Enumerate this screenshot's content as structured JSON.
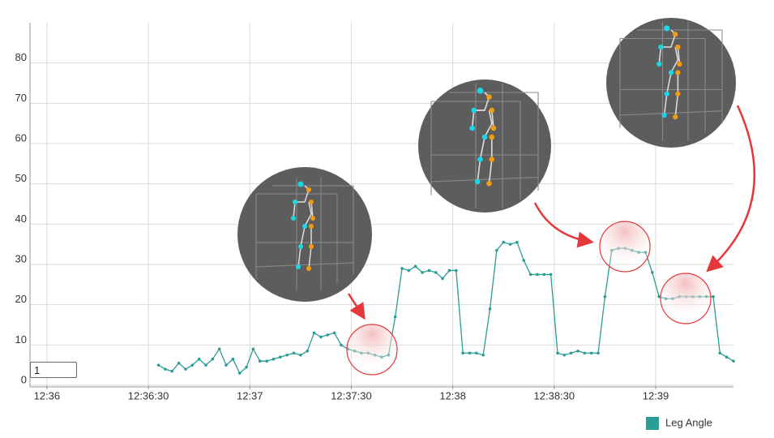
{
  "range_input": "1",
  "chart_data": {
    "type": "line",
    "x": [
      "12:36:33",
      "12:36:35",
      "12:36:37",
      "12:36:39",
      "12:36:41",
      "12:36:43",
      "12:36:45",
      "12:36:47",
      "12:36:49",
      "12:36:51",
      "12:36:53",
      "12:36:55",
      "12:36:57",
      "12:36:59",
      "12:37:01",
      "12:37:03",
      "12:37:05",
      "12:37:07",
      "12:37:09",
      "12:37:11",
      "12:37:13",
      "12:37:15",
      "12:37:17",
      "12:37:19",
      "12:37:21",
      "12:37:23",
      "12:37:25",
      "12:37:27",
      "12:37:29",
      "12:37:31",
      "12:37:33",
      "12:37:35",
      "12:37:37",
      "12:37:39",
      "12:37:41",
      "12:37:43",
      "12:37:45",
      "12:37:47",
      "12:37:49",
      "12:37:51",
      "12:37:53",
      "12:37:55",
      "12:37:57",
      "12:37:59",
      "12:38:01",
      "12:38:03",
      "12:38:05",
      "12:38:07",
      "12:38:09",
      "12:38:11",
      "12:38:13",
      "12:38:15",
      "12:38:17",
      "12:38:19",
      "12:38:21",
      "12:38:23",
      "12:38:25",
      "12:38:27",
      "12:38:29",
      "12:38:31",
      "12:38:33",
      "12:38:35",
      "12:38:37",
      "12:38:39",
      "12:38:41",
      "12:38:43",
      "12:38:45",
      "12:38:47",
      "12:38:49",
      "12:38:51",
      "12:38:53",
      "12:38:55",
      "12:38:57",
      "12:38:59",
      "12:39:01",
      "12:39:03",
      "12:39:05",
      "12:39:07",
      "12:39:09",
      "12:39:11",
      "12:39:13",
      "12:39:15",
      "12:39:17",
      "12:39:19",
      "12:39:21",
      "12:39:23"
    ],
    "series": [
      {
        "name": "Leg Angle",
        "color": "#2a9d94",
        "values": [
          5,
          4,
          3.5,
          5.5,
          4,
          5,
          6.5,
          5,
          6.5,
          9,
          5,
          6.5,
          3,
          4.5,
          9,
          6,
          6,
          6.5,
          7,
          7.5,
          8,
          7.5,
          8.5,
          13,
          12,
          12.5,
          13,
          10,
          9,
          8.5,
          8,
          8,
          7.5,
          7,
          7.5,
          17,
          29,
          28.5,
          29.5,
          28,
          28.5,
          28,
          26.5,
          28.5,
          28.5,
          8,
          8,
          8,
          7.5,
          19,
          33.5,
          35.5,
          35,
          35.5,
          31,
          27.5,
          27.5,
          27.5,
          27.5,
          8,
          7.5,
          8,
          8.5,
          8,
          8,
          8,
          22,
          33.5,
          34,
          34,
          33.5,
          33,
          33,
          28,
          22,
          21.5,
          21.5,
          22,
          22,
          22,
          22,
          22,
          22,
          8,
          7,
          6
        ]
      }
    ],
    "xlim": [
      "12:35:55",
      "12:39:23"
    ],
    "xticks": [
      {
        "value": "12:36:00",
        "label": "12:36"
      },
      {
        "value": "12:36:30",
        "label": "12:36:30"
      },
      {
        "value": "12:37:00",
        "label": "12:37"
      },
      {
        "value": "12:37:30",
        "label": "12:37:30"
      },
      {
        "value": "12:38:00",
        "label": "12:38"
      },
      {
        "value": "12:38:30",
        "label": "12:38:30"
      },
      {
        "value": "12:39:00",
        "label": "12:39"
      }
    ],
    "ylim": [
      0,
      90
    ],
    "yticks": [
      0,
      10,
      20,
      30,
      40,
      50,
      60,
      70,
      80
    ],
    "grid": true,
    "legend": "bottom-right"
  }
}
